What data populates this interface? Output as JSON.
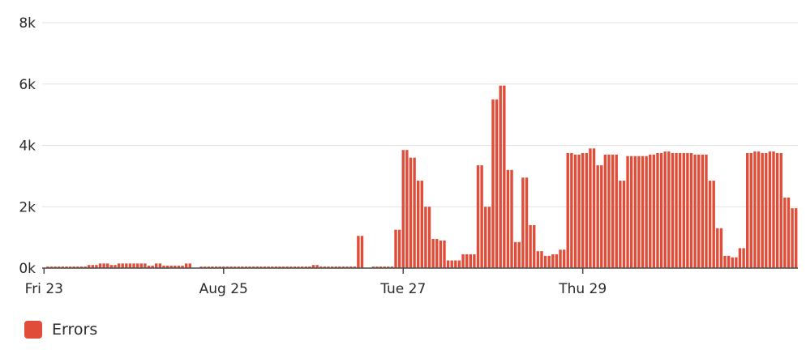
{
  "chart_data": {
    "type": "bar",
    "ylim": [
      0,
      8000
    ],
    "y_ticks": [
      {
        "value": 0,
        "label": "0k"
      },
      {
        "value": 2000,
        "label": "2k"
      },
      {
        "value": 4000,
        "label": "4k"
      },
      {
        "value": 6000,
        "label": "6k"
      },
      {
        "value": 8000,
        "label": "8k"
      }
    ],
    "x_ticks": [
      {
        "index": 0,
        "label": "Fri 23"
      },
      {
        "index": 48,
        "label": "Aug 25"
      },
      {
        "index": 96,
        "label": "Tue 27"
      },
      {
        "index": 144,
        "label": "Thu 29"
      }
    ],
    "grid": true,
    "legend_position": "bottom-left",
    "series": [
      {
        "name": "Errors",
        "color": "#e04e39",
        "values": [
          0,
          50,
          50,
          50,
          50,
          50,
          50,
          50,
          50,
          50,
          50,
          50,
          100,
          100,
          100,
          150,
          150,
          150,
          100,
          100,
          150,
          150,
          150,
          150,
          150,
          150,
          150,
          150,
          80,
          80,
          150,
          150,
          80,
          80,
          80,
          80,
          80,
          80,
          150,
          150,
          0,
          0,
          50,
          50,
          50,
          50,
          50,
          50,
          50,
          50,
          50,
          50,
          50,
          50,
          50,
          50,
          50,
          50,
          50,
          50,
          50,
          50,
          50,
          50,
          50,
          50,
          50,
          50,
          50,
          50,
          50,
          50,
          100,
          100,
          50,
          50,
          50,
          50,
          50,
          50,
          50,
          50,
          50,
          50,
          1050,
          1050,
          0,
          0,
          50,
          50,
          50,
          50,
          50,
          50,
          1250,
          1250,
          3850,
          3850,
          3600,
          3600,
          2850,
          2850,
          2000,
          2000,
          950,
          950,
          900,
          900,
          250,
          250,
          250,
          250,
          450,
          450,
          450,
          450,
          3350,
          3350,
          2000,
          2000,
          5500,
          5500,
          5950,
          5950,
          3200,
          3200,
          850,
          850,
          2950,
          2950,
          1400,
          1400,
          550,
          550,
          400,
          400,
          450,
          450,
          600,
          600,
          3750,
          3750,
          3700,
          3700,
          3750,
          3750,
          3900,
          3900,
          3350,
          3350,
          3700,
          3700,
          3700,
          3700,
          2850,
          2850,
          3650,
          3650,
          3650,
          3650,
          3650,
          3650,
          3700,
          3700,
          3750,
          3750,
          3800,
          3800,
          3750,
          3750,
          3750,
          3750,
          3750,
          3750,
          3700,
          3700,
          3700,
          3700,
          2850,
          2850,
          1300,
          1300,
          400,
          400,
          350,
          350,
          650,
          650,
          3750,
          3750,
          3800,
          3800,
          3750,
          3750,
          3800,
          3800,
          3750,
          3750,
          2300,
          2300,
          1950,
          1950
        ]
      }
    ]
  }
}
